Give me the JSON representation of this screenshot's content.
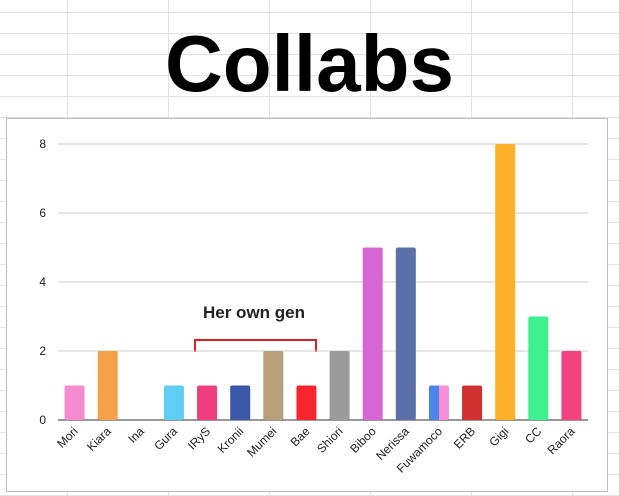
{
  "chart_data": {
    "type": "bar",
    "title": "Collabs",
    "categories": [
      "Mori",
      "Kiara",
      "Ina",
      "Gura",
      "IRyS",
      "Kronii",
      "Mumei",
      "Bae",
      "Shiori",
      "Biboo",
      "Nerissa",
      "Fuwamoco",
      "ERB",
      "Gigi",
      "CC",
      "Raora"
    ],
    "values": [
      1,
      2,
      0,
      1,
      1,
      1,
      2,
      1,
      2,
      5,
      5,
      1,
      1,
      8,
      3,
      2
    ],
    "colors": [
      "#f48ad0",
      "#f4a14a",
      "#7d5bbd",
      "#5ecef5",
      "#ef3e7e",
      "#3a57a8",
      "#b89e7b",
      "#f8242e",
      "#9b9b9b",
      "#d865d4",
      "#5b6fa8",
      [
        "#4a86e8",
        "#f78fd8"
      ],
      "#d03030",
      "#fdb12a",
      "#3ef08e",
      "#f2437f"
    ],
    "ylim": [
      0,
      8
    ],
    "yticks": [
      0,
      2,
      4,
      6,
      8
    ],
    "grid": true,
    "annotation": "Her own gen",
    "annotation_color": "#e02020"
  }
}
